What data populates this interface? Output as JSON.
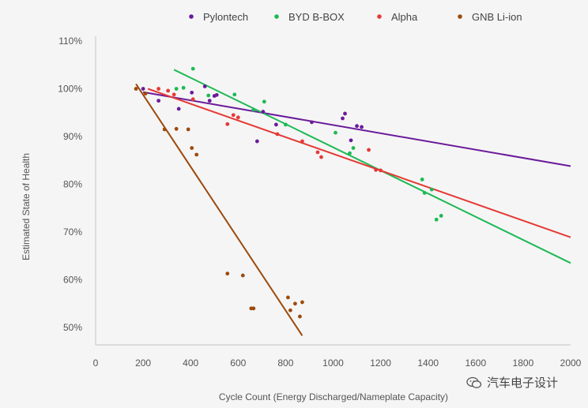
{
  "chart_data": {
    "type": "scatter",
    "title": "",
    "xlabel": "Cycle Count (Energy Discharged/Nameplate Capacity)",
    "ylabel": "Estimated State of Health",
    "xlim": [
      0,
      2000
    ],
    "ylim": [
      47,
      111
    ],
    "x_ticks": [
      0,
      200,
      400,
      600,
      800,
      1000,
      1200,
      1400,
      1600,
      1800,
      2000
    ],
    "x_tick_labels": [
      "0",
      "200",
      "400",
      "600",
      "800",
      "1000",
      "1200",
      "1400",
      "1600",
      "1800",
      "2000"
    ],
    "y_ticks": [
      50,
      60,
      70,
      80,
      90,
      100,
      110
    ],
    "y_tick_labels": [
      "50%",
      "60%",
      "70%",
      "80%",
      "90%",
      "100%",
      "110%"
    ],
    "grid": false,
    "legend_position": "top",
    "series": [
      {
        "name": "Pylontech",
        "color": "#6a1b9a",
        "points": [
          [
            200,
            100
          ],
          [
            265,
            97.5
          ],
          [
            350,
            95.8
          ],
          [
            405,
            99.2
          ],
          [
            460,
            100.5
          ],
          [
            480,
            97.5
          ],
          [
            500,
            98.5
          ],
          [
            510,
            98.7
          ],
          [
            680,
            89
          ],
          [
            705,
            95.2
          ],
          [
            760,
            92.5
          ],
          [
            910,
            93
          ],
          [
            1040,
            93.8
          ],
          [
            1050,
            94.8
          ],
          [
            1075,
            89.2
          ],
          [
            1100,
            92.2
          ],
          [
            1120,
            92
          ]
        ],
        "trend": [
          [
            200,
            99.3
          ],
          [
            2000,
            83.8
          ]
        ]
      },
      {
        "name": "BYD B-BOX",
        "color": "#1db954",
        "points": [
          [
            340,
            100
          ],
          [
            370,
            100.2
          ],
          [
            410,
            104.2
          ],
          [
            475,
            98.6
          ],
          [
            585,
            98.8
          ],
          [
            665,
            95.6
          ],
          [
            710,
            97.3
          ],
          [
            800,
            92.5
          ],
          [
            1010,
            90.8
          ],
          [
            1070,
            86.5
          ],
          [
            1085,
            87.6
          ],
          [
            1375,
            81
          ],
          [
            1385,
            78.2
          ],
          [
            1415,
            78.9
          ],
          [
            1435,
            72.6
          ],
          [
            1455,
            73.4
          ]
        ],
        "trend": [
          [
            330,
            104
          ],
          [
            2000,
            63.5
          ]
        ]
      },
      {
        "name": "Alpha",
        "color": "#e53935",
        "points": [
          [
            265,
            100
          ],
          [
            305,
            99.6
          ],
          [
            330,
            98.8
          ],
          [
            410,
            97.8
          ],
          [
            555,
            92.6
          ],
          [
            580,
            94.5
          ],
          [
            600,
            94
          ],
          [
            765,
            90.5
          ],
          [
            870,
            89
          ],
          [
            935,
            86.7
          ],
          [
            950,
            85.7
          ],
          [
            1150,
            87.2
          ],
          [
            1180,
            83
          ],
          [
            1200,
            82.9
          ]
        ],
        "trend": [
          [
            220,
            100
          ],
          [
            2000,
            68.9
          ]
        ]
      },
      {
        "name": "GNB Li-ion",
        "color": "#9c4a0c",
        "points": [
          [
            170,
            100
          ],
          [
            210,
            99
          ],
          [
            290,
            91.5
          ],
          [
            340,
            91.6
          ],
          [
            390,
            91.5
          ],
          [
            405,
            87.6
          ],
          [
            425,
            86.2
          ],
          [
            555,
            61.3
          ],
          [
            620,
            60.9
          ],
          [
            655,
            54
          ],
          [
            665,
            54
          ],
          [
            810,
            56.3
          ],
          [
            820,
            53.6
          ],
          [
            840,
            55
          ],
          [
            860,
            52.3
          ],
          [
            870,
            55.3
          ]
        ],
        "trend": [
          [
            170,
            101
          ],
          [
            870,
            48.3
          ]
        ]
      }
    ]
  },
  "watermark": {
    "text": "汽车电子设计",
    "icon": "wechat-icon"
  }
}
